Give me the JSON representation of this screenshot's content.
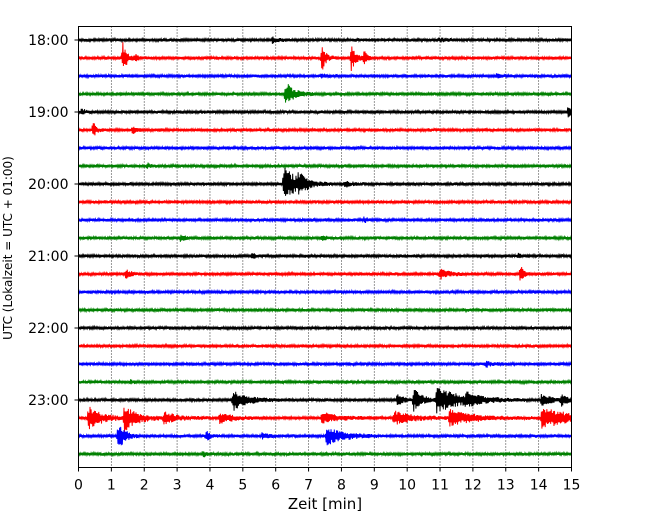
{
  "chart_data": {
    "type": "line",
    "title": "",
    "xlabel": "Zeit  [min]",
    "ylabel": "UTC (Lokalzeit = UTC + 01:00)",
    "xlim": [
      0,
      15
    ],
    "x_ticks": [
      "0",
      "1",
      "2",
      "3",
      "4",
      "5",
      "6",
      "7",
      "8",
      "9",
      "10",
      "11",
      "12",
      "13",
      "14",
      "15"
    ],
    "grid": "vertical dotted",
    "row_minutes": 15,
    "trace_colors": [
      "#000000",
      "#ff0000",
      "#0000ff",
      "#008000"
    ],
    "y_ticks": [
      {
        "label": "18:00",
        "row": 0
      },
      {
        "label": "19:00",
        "row": 4
      },
      {
        "label": "20:00",
        "row": 8
      },
      {
        "label": "21:00",
        "row": 12
      },
      {
        "label": "22:00",
        "row": 16
      },
      {
        "label": "23:00",
        "row": 20
      }
    ],
    "rows": [
      {
        "time": "18:00",
        "events": [
          {
            "t": 5.9,
            "amp": 0.5,
            "dur": 0.2
          },
          {
            "t": 11.0,
            "amp": 0.3,
            "dur": 0.3
          }
        ]
      },
      {
        "time": "18:15",
        "events": [
          {
            "t": 1.35,
            "amp": 2.6,
            "dur": 0.15
          },
          {
            "t": 1.75,
            "amp": 0.6,
            "dur": 0.1
          },
          {
            "t": 7.4,
            "amp": 2.4,
            "dur": 0.15
          },
          {
            "t": 8.3,
            "amp": 2.3,
            "dur": 0.15
          },
          {
            "t": 8.7,
            "amp": 1.3,
            "dur": 0.1
          }
        ]
      },
      {
        "time": "18:30",
        "events": [
          {
            "t": 7.4,
            "amp": 0.3,
            "dur": 0.2
          },
          {
            "t": 12.7,
            "amp": 0.3,
            "dur": 0.2
          }
        ]
      },
      {
        "time": "18:45",
        "events": [
          {
            "t": 6.3,
            "amp": 2.2,
            "dur": 0.3
          }
        ]
      },
      {
        "time": "19:00",
        "events": [
          {
            "t": 0.1,
            "amp": 0.6,
            "dur": 0.1
          },
          {
            "t": 14.9,
            "amp": 0.9,
            "dur": 0.1
          }
        ]
      },
      {
        "time": "19:15",
        "events": [
          {
            "t": 0.45,
            "amp": 1.6,
            "dur": 0.1
          },
          {
            "t": 1.65,
            "amp": 0.6,
            "dur": 0.1
          }
        ]
      },
      {
        "time": "19:30",
        "events": []
      },
      {
        "time": "19:45",
        "events": [
          {
            "t": 2.1,
            "amp": 0.4,
            "dur": 0.1
          }
        ]
      },
      {
        "time": "20:00",
        "events": [
          {
            "t": 6.25,
            "amp": 3.2,
            "dur": 0.5
          },
          {
            "t": 6.7,
            "amp": 1.6,
            "dur": 0.2
          },
          {
            "t": 8.1,
            "amp": 0.6,
            "dur": 0.2
          }
        ]
      },
      {
        "time": "20:15",
        "events": []
      },
      {
        "time": "20:30",
        "events": [
          {
            "t": 8.7,
            "amp": 0.5,
            "dur": 0.1
          }
        ]
      },
      {
        "time": "20:45",
        "events": [
          {
            "t": 3.1,
            "amp": 0.4,
            "dur": 0.2
          },
          {
            "t": 7.4,
            "amp": 0.4,
            "dur": 0.2
          }
        ]
      },
      {
        "time": "21:00",
        "events": [
          {
            "t": 5.3,
            "amp": 0.5,
            "dur": 0.1
          },
          {
            "t": 13.4,
            "amp": 0.4,
            "dur": 0.1
          }
        ]
      },
      {
        "time": "21:15",
        "events": [
          {
            "t": 1.45,
            "amp": 0.8,
            "dur": 0.2
          },
          {
            "t": 11.0,
            "amp": 0.9,
            "dur": 0.3
          },
          {
            "t": 13.45,
            "amp": 1.6,
            "dur": 0.1
          }
        ]
      },
      {
        "time": "21:30",
        "events": []
      },
      {
        "time": "21:45",
        "events": []
      },
      {
        "time": "22:00",
        "events": []
      },
      {
        "time": "22:15",
        "events": []
      },
      {
        "time": "22:30",
        "events": [
          {
            "t": 12.4,
            "amp": 0.5,
            "dur": 0.2
          }
        ]
      },
      {
        "time": "22:45",
        "events": [
          {
            "t": 1.6,
            "amp": 0.4,
            "dur": 0.1
          }
        ]
      },
      {
        "time": "23:00",
        "events": [
          {
            "t": 4.7,
            "amp": 1.8,
            "dur": 0.5
          },
          {
            "t": 9.7,
            "amp": 1.0,
            "dur": 0.2
          },
          {
            "t": 10.2,
            "amp": 2.0,
            "dur": 0.3
          },
          {
            "t": 10.9,
            "amp": 2.2,
            "dur": 0.9
          },
          {
            "t": 11.8,
            "amp": 0.9,
            "dur": 0.4
          },
          {
            "t": 14.1,
            "amp": 1.2,
            "dur": 0.3
          },
          {
            "t": 14.7,
            "amp": 1.0,
            "dur": 0.2
          }
        ]
      },
      {
        "time": "23:15",
        "events": [
          {
            "t": 0.3,
            "amp": 2.0,
            "dur": 0.5
          },
          {
            "t": 1.4,
            "amp": 2.2,
            "dur": 0.5
          },
          {
            "t": 2.6,
            "amp": 1.0,
            "dur": 0.5
          },
          {
            "t": 4.3,
            "amp": 0.9,
            "dur": 0.5
          },
          {
            "t": 7.4,
            "amp": 1.0,
            "dur": 0.6
          },
          {
            "t": 9.6,
            "amp": 1.2,
            "dur": 0.7
          },
          {
            "t": 11.3,
            "amp": 1.3,
            "dur": 0.9
          },
          {
            "t": 14.1,
            "amp": 2.0,
            "dur": 1.0
          }
        ]
      },
      {
        "time": "23:30",
        "events": [
          {
            "t": 1.2,
            "amp": 2.5,
            "dur": 0.25
          },
          {
            "t": 3.9,
            "amp": 0.8,
            "dur": 0.15
          },
          {
            "t": 5.6,
            "amp": 0.6,
            "dur": 0.2
          },
          {
            "t": 7.55,
            "amp": 1.6,
            "dur": 0.6
          }
        ]
      },
      {
        "time": "23:45",
        "events": [
          {
            "t": 3.8,
            "amp": 0.5,
            "dur": 0.1
          }
        ]
      }
    ]
  }
}
